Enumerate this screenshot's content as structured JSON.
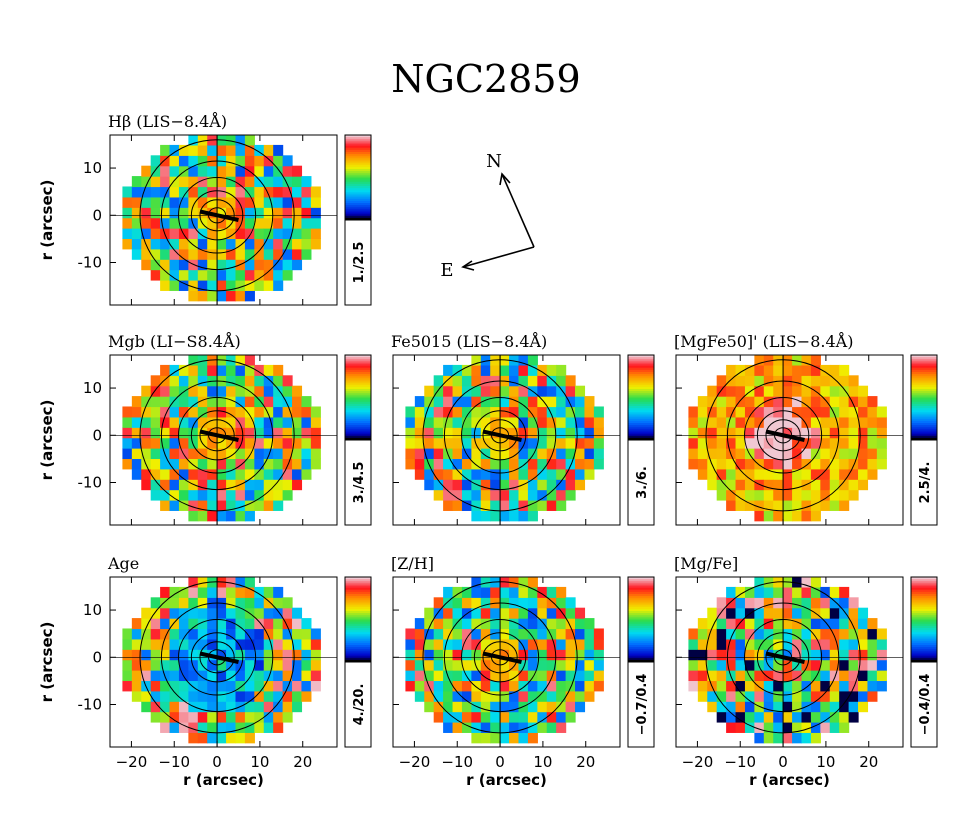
{
  "chart_data": {
    "type": "heatmap",
    "title": "NGC2859",
    "xlabel": "r (arcsec)",
    "ylabel": "r (arcsec)",
    "xticks": [
      -20,
      -10,
      0,
      10,
      20
    ],
    "yticks": [
      10,
      0,
      -10
    ],
    "xlim": [
      -25,
      28
    ],
    "ylim": [
      -19,
      17
    ],
    "compass": {
      "north": "N",
      "east": "E"
    },
    "panels": [
      {
        "id": "hbeta",
        "label": "Hβ (LIS−8.4Å)",
        "range": "1./2.5",
        "pattern": "smooth"
      },
      {
        "id": "mgb",
        "label": "Mgb (LI−S8.4Å)",
        "range": "3./4.5",
        "pattern": "smooth"
      },
      {
        "id": "fe5015",
        "label": "Fe5015 (LIS−8.4Å)",
        "range": "3./6.",
        "pattern": "smooth"
      },
      {
        "id": "mgfe50",
        "label": "[MgFe50]' (LIS−8.4Å)",
        "range": "2.5/4.",
        "pattern": "hot"
      },
      {
        "id": "age",
        "label": "Age",
        "range": "4./20.",
        "pattern": "blue"
      },
      {
        "id": "zh",
        "label": "[Z/H]",
        "range": "−0.7/0.4",
        "pattern": "smooth"
      },
      {
        "id": "mgfe",
        "label": "[Mg/Fe]",
        "range": "−0.4/0.4",
        "pattern": "mixed"
      }
    ]
  }
}
